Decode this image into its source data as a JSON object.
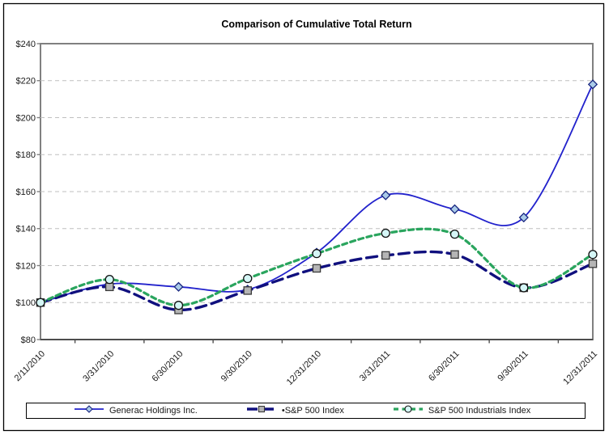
{
  "chart": {
    "title": "Comparison of Cumulative Total Return",
    "background_color": "#ffffff",
    "plot_border_color": "#808080",
    "bottom_axis_color": "#4d4d4d",
    "gridline_color": "#bfbfbf",
    "outer_border_color": "#000000",
    "currency_prefix": "$"
  },
  "chart_data": {
    "type": "line",
    "title": "Comparison of Cumulative Total Return",
    "xlabel": "",
    "ylabel": "",
    "ylim": [
      80,
      240
    ],
    "ytick_step": 20,
    "yticks": [
      240,
      220,
      200,
      180,
      160,
      140,
      120,
      100,
      80
    ],
    "ytick_labels": [
      "$240",
      "$220",
      "$200",
      "$180",
      "$160",
      "$140",
      "$120",
      "$100",
      "$80"
    ],
    "grid": true,
    "legend_position": "bottom",
    "categories": [
      "2/11/2010",
      "3/31/2010",
      "6/30/2010",
      "9/30/2010",
      "12/31/2010",
      "3/31/2011",
      "6/30/2011",
      "9/30/2011",
      "12/31/2011"
    ],
    "series": [
      {
        "name": "Generac Holdings Inc.",
        "values": [
          100,
          110,
          108.5,
          107,
          127,
          158,
          150.5,
          146,
          218
        ],
        "color": "#2222cc",
        "dash": "solid",
        "line_width": 1.8,
        "marker": "diamond",
        "marker_fill": "#aacbe8",
        "marker_stroke": "#16247e"
      },
      {
        "name": "•S&P 500 Index",
        "values": [
          100,
          108.5,
          96,
          106.5,
          118.5,
          125.5,
          126,
          108,
          121
        ],
        "color": "#10107e",
        "dash": "13 7",
        "line_width": 3.4,
        "marker": "square",
        "marker_fill": "#b5b5b5",
        "marker_stroke": "#3a3a3a"
      },
      {
        "name": "S&P 500 Industrials Index",
        "values": [
          100,
          112.5,
          98.5,
          113,
          126.5,
          137.5,
          137,
          108,
          126
        ],
        "color": "#2aa55e",
        "dash": "6 4.5",
        "line_width": 3.2,
        "marker": "circle",
        "marker_fill": "#d5f6f6",
        "marker_stroke": "#111111"
      }
    ]
  },
  "legend": {
    "items": [
      {
        "label": "Generac Holdings Inc."
      },
      {
        "label": "•S&P 500 Index"
      },
      {
        "label": "S&P 500 Industrials Index"
      }
    ]
  }
}
